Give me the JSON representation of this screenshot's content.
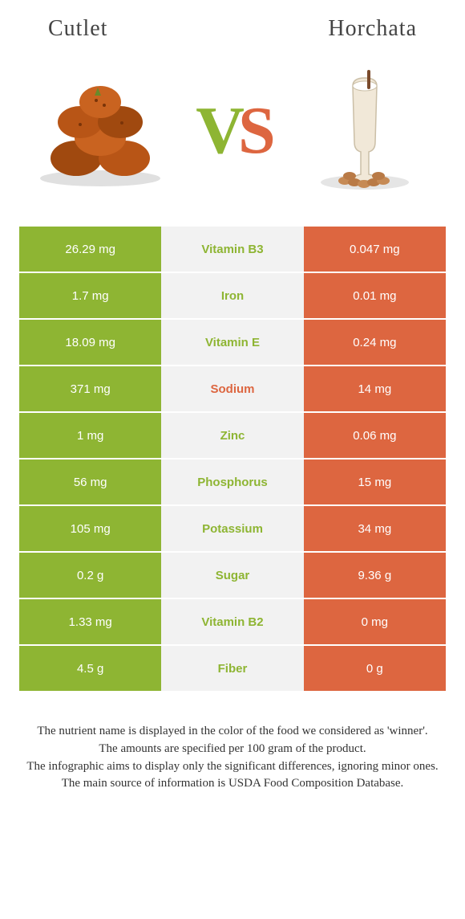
{
  "colors": {
    "left_bg": "#8eb533",
    "right_bg": "#dd6640",
    "mid_bg": "#f2f2f2",
    "left_text": "#8eb533",
    "right_text": "#dd6640"
  },
  "header": {
    "left_title": "Cutlet",
    "right_title": "Horchata",
    "vs_v": "V",
    "vs_s": "S"
  },
  "rows": [
    {
      "left": "26.29 mg",
      "label": "Vitamin B3",
      "right": "0.047 mg",
      "winner": "left"
    },
    {
      "left": "1.7 mg",
      "label": "Iron",
      "right": "0.01 mg",
      "winner": "left"
    },
    {
      "left": "18.09 mg",
      "label": "Vitamin E",
      "right": "0.24 mg",
      "winner": "left"
    },
    {
      "left": "371 mg",
      "label": "Sodium",
      "right": "14 mg",
      "winner": "right"
    },
    {
      "left": "1 mg",
      "label": "Zinc",
      "right": "0.06 mg",
      "winner": "left"
    },
    {
      "left": "56 mg",
      "label": "Phosphorus",
      "right": "15 mg",
      "winner": "left"
    },
    {
      "left": "105 mg",
      "label": "Potassium",
      "right": "34 mg",
      "winner": "left"
    },
    {
      "left": "0.2 g",
      "label": "Sugar",
      "right": "9.36 g",
      "winner": "left"
    },
    {
      "left": "1.33 mg",
      "label": "Vitamin B2",
      "right": "0 mg",
      "winner": "left"
    },
    {
      "left": "4.5 g",
      "label": "Fiber",
      "right": "0 g",
      "winner": "left"
    }
  ],
  "footer": {
    "line1": "The nutrient name is displayed in the color of the food we considered as 'winner'.",
    "line2": "The amounts are specified per 100 gram of the product.",
    "line3": "The infographic aims to display only the significant differences, ignoring minor ones.",
    "line4": "The main source of information is USDA Food Composition Database."
  }
}
